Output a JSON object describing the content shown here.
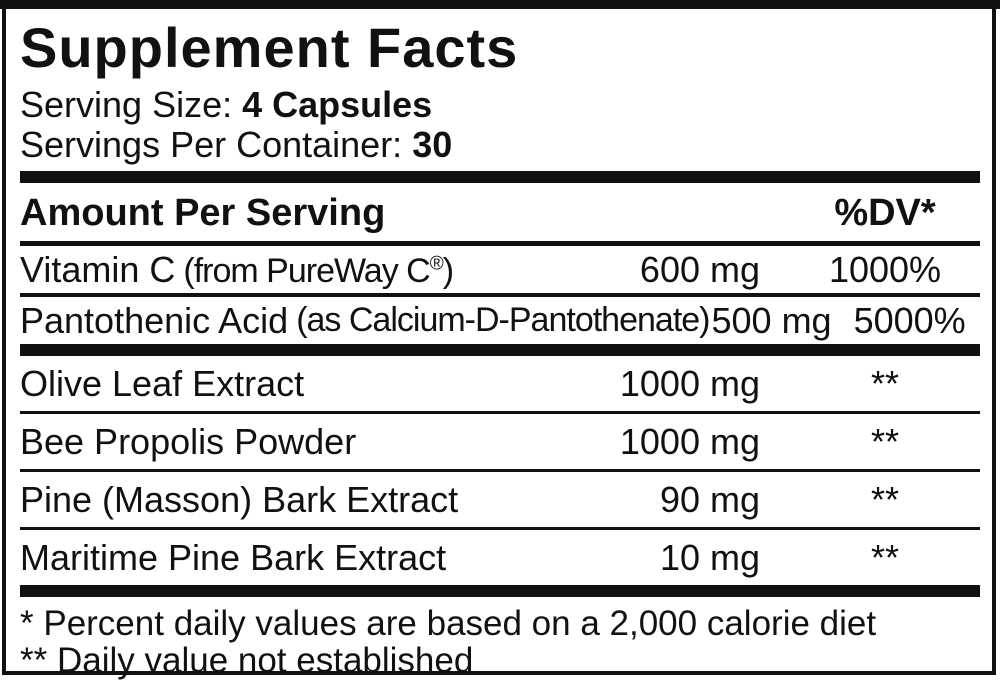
{
  "label": {
    "title": "Supplement Facts",
    "serving": {
      "size_label": "Serving Size: ",
      "size_value": "4 Capsules",
      "container_label": "Servings Per Container: ",
      "container_value": "30"
    },
    "columns": {
      "amount_header": "Amount Per Serving",
      "dv_header": "%DV*"
    },
    "rows": [
      {
        "name": "Vitamin C",
        "qual_pre": "(from PureWay C",
        "trademark": "®",
        "qual_post": ")",
        "amount": "600 mg",
        "dv": "1000%"
      },
      {
        "name": "Pantothenic Acid",
        "qual": "(as Calcium-D-Pantothenate)",
        "amount": "500 mg",
        "dv": "5000%"
      },
      {
        "name": "Olive Leaf Extract",
        "amount": "1000 mg",
        "dv": "**"
      },
      {
        "name": "Bee Propolis Powder",
        "amount": "1000 mg",
        "dv": "**"
      },
      {
        "name": "Pine (Masson) Bark Extract",
        "amount": "90 mg",
        "dv": "**"
      },
      {
        "name": "Maritime Pine Bark Extract",
        "amount": "10 mg",
        "dv": "**"
      }
    ],
    "footnotes": [
      "* Percent daily values are based on a 2,000 calorie diet",
      "** Daily value not established"
    ],
    "colors": {
      "ink": "#111111",
      "background": "#ffffff"
    }
  }
}
